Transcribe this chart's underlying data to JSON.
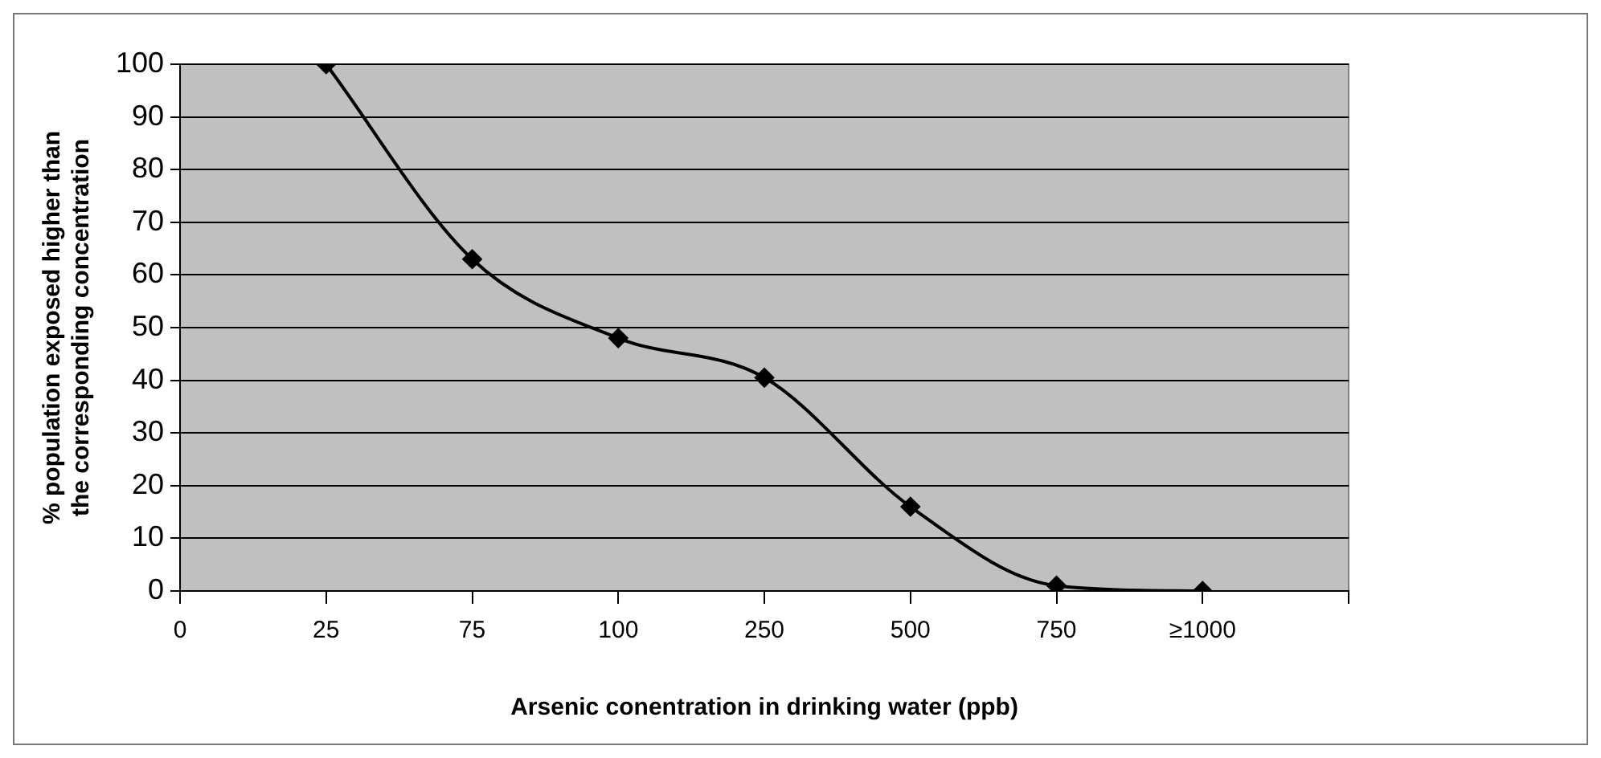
{
  "chart_data": {
    "type": "line",
    "xlabel": "Arsenic conentration in drinking water (ppb)",
    "ylabel": "% population exposed higher than\nthe corresponding concentration",
    "categories": [
      "0",
      "25",
      "75",
      "100",
      "250",
      "500",
      "750",
      "≥1000",
      null
    ],
    "values": [
      null,
      100,
      63,
      48,
      40.5,
      16,
      1,
      0,
      null
    ],
    "color": "#000000",
    "ylim": [
      0,
      100
    ],
    "yticks": [
      0,
      10,
      20,
      30,
      40,
      50,
      60,
      70,
      80,
      90,
      100
    ],
    "grid": "y",
    "marker": "diamond",
    "line_style": "solid",
    "legend": false
  }
}
